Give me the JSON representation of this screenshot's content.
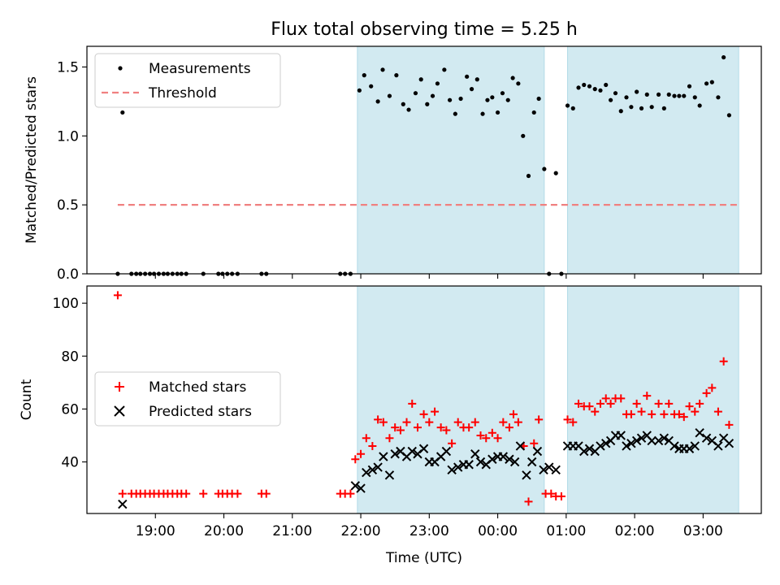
{
  "title": "Flux total observing time = 5.25 h",
  "colors": {
    "shade": "#add8e6",
    "measurement": "#000000",
    "threshold": "#f08080",
    "matched": "#ff0000",
    "predicted": "#000000"
  },
  "chart_data": [
    {
      "type": "scatter",
      "ylabel": "Matched/Predicted stars",
      "xlim": [
        18.0,
        27.85
      ],
      "ylim": [
        0,
        1.65
      ],
      "yticks": [
        0.0,
        0.5,
        1.0,
        1.5
      ],
      "ytick_labels": [
        "0.0",
        "0.5",
        "1.0",
        "1.5"
      ],
      "legend": {
        "placement": "upper left",
        "entries": [
          "Measurements",
          "Threshold"
        ]
      },
      "shaded_spans": [
        [
          21.95,
          24.68
        ],
        [
          25.02,
          27.52
        ]
      ],
      "threshold": {
        "name": "Threshold",
        "y": 0.5,
        "x_range": [
          18.45,
          27.52
        ]
      },
      "series": [
        {
          "name": "Measurements",
          "points": [
            [
              18.45,
              0.0
            ],
            [
              18.52,
              1.17
            ],
            [
              18.65,
              0.0
            ],
            [
              18.72,
              0.0
            ],
            [
              18.78,
              0.0
            ],
            [
              18.85,
              0.0
            ],
            [
              18.92,
              0.0
            ],
            [
              18.98,
              0.0
            ],
            [
              19.05,
              0.0
            ],
            [
              19.12,
              0.0
            ],
            [
              19.18,
              0.0
            ],
            [
              19.25,
              0.0
            ],
            [
              19.32,
              0.0
            ],
            [
              19.38,
              0.0
            ],
            [
              19.45,
              0.0
            ],
            [
              19.7,
              0.0
            ],
            [
              19.92,
              0.0
            ],
            [
              19.98,
              0.0
            ],
            [
              20.05,
              0.0
            ],
            [
              20.12,
              0.0
            ],
            [
              20.2,
              0.0
            ],
            [
              20.55,
              0.0
            ],
            [
              20.62,
              0.0
            ],
            [
              21.7,
              0.0
            ],
            [
              21.77,
              0.0
            ],
            [
              21.85,
              0.0
            ],
            [
              21.98,
              1.33
            ],
            [
              22.05,
              1.44
            ],
            [
              22.15,
              1.36
            ],
            [
              22.25,
              1.25
            ],
            [
              22.32,
              1.48
            ],
            [
              22.42,
              1.29
            ],
            [
              22.52,
              1.44
            ],
            [
              22.62,
              1.23
            ],
            [
              22.7,
              1.19
            ],
            [
              22.8,
              1.31
            ],
            [
              22.88,
              1.41
            ],
            [
              22.97,
              1.23
            ],
            [
              23.05,
              1.29
            ],
            [
              23.12,
              1.38
            ],
            [
              23.22,
              1.48
            ],
            [
              23.3,
              1.26
            ],
            [
              23.38,
              1.16
            ],
            [
              23.46,
              1.27
            ],
            [
              23.55,
              1.43
            ],
            [
              23.62,
              1.34
            ],
            [
              23.7,
              1.41
            ],
            [
              23.78,
              1.16
            ],
            [
              23.85,
              1.26
            ],
            [
              23.92,
              1.28
            ],
            [
              24.0,
              1.17
            ],
            [
              24.07,
              1.31
            ],
            [
              24.15,
              1.26
            ],
            [
              24.22,
              1.42
            ],
            [
              24.3,
              1.38
            ],
            [
              24.37,
              1.0
            ],
            [
              24.45,
              0.71
            ],
            [
              24.53,
              1.17
            ],
            [
              24.6,
              1.27
            ],
            [
              24.68,
              0.76
            ],
            [
              24.75,
              0.0
            ],
            [
              24.85,
              0.73
            ],
            [
              24.93,
              0.0
            ],
            [
              25.02,
              1.22
            ],
            [
              25.1,
              1.2
            ],
            [
              25.18,
              1.35
            ],
            [
              25.26,
              1.37
            ],
            [
              25.34,
              1.36
            ],
            [
              25.42,
              1.34
            ],
            [
              25.5,
              1.33
            ],
            [
              25.58,
              1.37
            ],
            [
              25.65,
              1.26
            ],
            [
              25.72,
              1.31
            ],
            [
              25.8,
              1.18
            ],
            [
              25.88,
              1.28
            ],
            [
              25.95,
              1.21
            ],
            [
              26.03,
              1.32
            ],
            [
              26.1,
              1.2
            ],
            [
              26.18,
              1.3
            ],
            [
              26.25,
              1.21
            ],
            [
              26.35,
              1.3
            ],
            [
              26.43,
              1.2
            ],
            [
              26.5,
              1.3
            ],
            [
              26.58,
              1.29
            ],
            [
              26.65,
              1.29
            ],
            [
              26.72,
              1.29
            ],
            [
              26.8,
              1.36
            ],
            [
              26.88,
              1.28
            ],
            [
              26.95,
              1.22
            ],
            [
              27.05,
              1.38
            ],
            [
              27.13,
              1.39
            ],
            [
              27.22,
              1.28
            ],
            [
              27.3,
              1.57
            ],
            [
              27.38,
              1.15
            ]
          ]
        }
      ]
    },
    {
      "type": "scatter",
      "xlabel": "Time (UTC)",
      "ylabel": "Count",
      "xlim": [
        18.0,
        27.85
      ],
      "ylim": [
        20.5,
        106.5
      ],
      "xticks": [
        19,
        20,
        21,
        22,
        23,
        24,
        25,
        26,
        27
      ],
      "xtick_labels": [
        "19:00",
        "20:00",
        "21:00",
        "22:00",
        "23:00",
        "00:00",
        "01:00",
        "02:00",
        "03:00"
      ],
      "yticks": [
        40,
        60,
        80,
        100
      ],
      "ytick_labels": [
        "40",
        "60",
        "80",
        "100"
      ],
      "legend": {
        "placement": "center left",
        "entries": [
          "Matched stars",
          "Predicted stars"
        ]
      },
      "shaded_spans": [
        [
          21.95,
          24.68
        ],
        [
          25.02,
          27.52
        ]
      ],
      "series": [
        {
          "name": "Matched stars",
          "marker": "plus",
          "points": [
            [
              18.45,
              103
            ],
            [
              18.52,
              28
            ],
            [
              18.65,
              28
            ],
            [
              18.72,
              28
            ],
            [
              18.78,
              28
            ],
            [
              18.85,
              28
            ],
            [
              18.92,
              28
            ],
            [
              18.98,
              28
            ],
            [
              19.05,
              28
            ],
            [
              19.12,
              28
            ],
            [
              19.18,
              28
            ],
            [
              19.25,
              28
            ],
            [
              19.32,
              28
            ],
            [
              19.38,
              28
            ],
            [
              19.45,
              28
            ],
            [
              19.7,
              28
            ],
            [
              19.92,
              28
            ],
            [
              19.98,
              28
            ],
            [
              20.05,
              28
            ],
            [
              20.12,
              28
            ],
            [
              20.2,
              28
            ],
            [
              20.55,
              28
            ],
            [
              20.62,
              28
            ],
            [
              21.7,
              28
            ],
            [
              21.77,
              28
            ],
            [
              21.85,
              28
            ],
            [
              21.92,
              41
            ],
            [
              22.0,
              43
            ],
            [
              22.08,
              49
            ],
            [
              22.17,
              46
            ],
            [
              22.25,
              56
            ],
            [
              22.33,
              55
            ],
            [
              22.42,
              49
            ],
            [
              22.5,
              53
            ],
            [
              22.58,
              52
            ],
            [
              22.67,
              55
            ],
            [
              22.75,
              62
            ],
            [
              22.83,
              53
            ],
            [
              22.92,
              58
            ],
            [
              23.0,
              55
            ],
            [
              23.08,
              59
            ],
            [
              23.17,
              53
            ],
            [
              23.25,
              52
            ],
            [
              23.33,
              47
            ],
            [
              23.42,
              55
            ],
            [
              23.5,
              53
            ],
            [
              23.58,
              53
            ],
            [
              23.67,
              55
            ],
            [
              23.75,
              50
            ],
            [
              23.83,
              49
            ],
            [
              23.92,
              51
            ],
            [
              24.0,
              49
            ],
            [
              24.08,
              55
            ],
            [
              24.17,
              53
            ],
            [
              24.23,
              58
            ],
            [
              24.3,
              55
            ],
            [
              24.38,
              46
            ],
            [
              24.45,
              25
            ],
            [
              24.53,
              47
            ],
            [
              24.6,
              56
            ],
            [
              24.7,
              28
            ],
            [
              24.78,
              28
            ],
            [
              24.85,
              27
            ],
            [
              24.93,
              27
            ],
            [
              25.02,
              56
            ],
            [
              25.1,
              55
            ],
            [
              25.18,
              62
            ],
            [
              25.26,
              61
            ],
            [
              25.34,
              61
            ],
            [
              25.42,
              59
            ],
            [
              25.5,
              62
            ],
            [
              25.58,
              64
            ],
            [
              25.65,
              62
            ],
            [
              25.72,
              64
            ],
            [
              25.8,
              64
            ],
            [
              25.88,
              58
            ],
            [
              25.95,
              58
            ],
            [
              26.03,
              62
            ],
            [
              26.1,
              59
            ],
            [
              26.18,
              65
            ],
            [
              26.25,
              58
            ],
            [
              26.35,
              62
            ],
            [
              26.43,
              58
            ],
            [
              26.5,
              62
            ],
            [
              26.58,
              58
            ],
            [
              26.65,
              58
            ],
            [
              26.72,
              57
            ],
            [
              26.8,
              61
            ],
            [
              26.88,
              59
            ],
            [
              26.95,
              62
            ],
            [
              27.05,
              66
            ],
            [
              27.13,
              68
            ],
            [
              27.22,
              59
            ],
            [
              27.3,
              78
            ],
            [
              27.38,
              54
            ]
          ]
        },
        {
          "name": "Predicted stars",
          "marker": "x",
          "points": [
            [
              18.52,
              24
            ],
            [
              21.92,
              31
            ],
            [
              22.0,
              30
            ],
            [
              22.08,
              36
            ],
            [
              22.17,
              37
            ],
            [
              22.25,
              38
            ],
            [
              22.33,
              42
            ],
            [
              22.42,
              35
            ],
            [
              22.5,
              43
            ],
            [
              22.58,
              44
            ],
            [
              22.67,
              42
            ],
            [
              22.75,
              44
            ],
            [
              22.83,
              43
            ],
            [
              22.92,
              45
            ],
            [
              23.0,
              40
            ],
            [
              23.08,
              40
            ],
            [
              23.17,
              42
            ],
            [
              23.25,
              44
            ],
            [
              23.33,
              37
            ],
            [
              23.42,
              38
            ],
            [
              23.5,
              39
            ],
            [
              23.58,
              39
            ],
            [
              23.67,
              43
            ],
            [
              23.75,
              40
            ],
            [
              23.83,
              39
            ],
            [
              23.92,
              41
            ],
            [
              24.0,
              42
            ],
            [
              24.08,
              42
            ],
            [
              24.17,
              41
            ],
            [
              24.25,
              40
            ],
            [
              24.33,
              46
            ],
            [
              24.42,
              35
            ],
            [
              24.5,
              40
            ],
            [
              24.58,
              44
            ],
            [
              24.67,
              37
            ],
            [
              24.75,
              38
            ],
            [
              24.85,
              37
            ],
            [
              25.02,
              46
            ],
            [
              25.1,
              46
            ],
            [
              25.18,
              46
            ],
            [
              25.26,
              44
            ],
            [
              25.34,
              45
            ],
            [
              25.42,
              44
            ],
            [
              25.5,
              46
            ],
            [
              25.58,
              47
            ],
            [
              25.65,
              48
            ],
            [
              25.72,
              50
            ],
            [
              25.8,
              50
            ],
            [
              25.88,
              46
            ],
            [
              25.95,
              47
            ],
            [
              26.03,
              48
            ],
            [
              26.1,
              49
            ],
            [
              26.18,
              50
            ],
            [
              26.25,
              48
            ],
            [
              26.35,
              48
            ],
            [
              26.43,
              49
            ],
            [
              26.5,
              48
            ],
            [
              26.58,
              46
            ],
            [
              26.65,
              45
            ],
            [
              26.72,
              45
            ],
            [
              26.8,
              45
            ],
            [
              26.88,
              46
            ],
            [
              26.95,
              51
            ],
            [
              27.05,
              49
            ],
            [
              27.13,
              48
            ],
            [
              27.22,
              46
            ],
            [
              27.3,
              49
            ],
            [
              27.38,
              47
            ]
          ]
        }
      ]
    }
  ]
}
